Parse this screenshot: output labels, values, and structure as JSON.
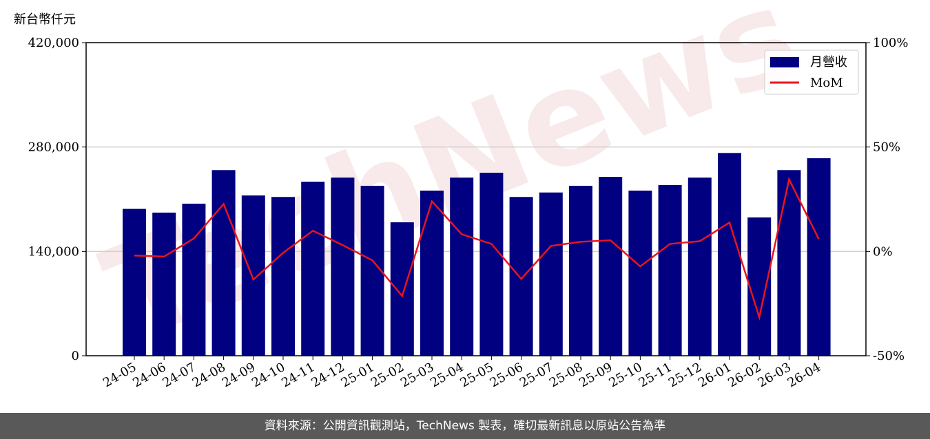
{
  "chart_data": {
    "type": "bar_line",
    "y_label": "新台幣仟元",
    "watermark": "TechNews",
    "categories": [
      "24-05",
      "24-06",
      "24-07",
      "24-08",
      "24-09",
      "24-10",
      "24-11",
      "24-12",
      "25-01",
      "25-02",
      "25-03",
      "25-04",
      "25-05",
      "25-06",
      "25-07",
      "25-08",
      "25-09",
      "25-10",
      "25-11",
      "25-12",
      "26-01",
      "26-02",
      "26-03",
      "26-04"
    ],
    "series": [
      {
        "name": "月營收",
        "type": "bar",
        "color": "#000080",
        "values": [
          197000,
          192000,
          204000,
          249000,
          215000,
          213000,
          233500,
          239000,
          228000,
          179000,
          221500,
          239000,
          245500,
          213000,
          219000,
          228000,
          240000,
          221500,
          229000,
          239000,
          272000,
          185500,
          249000,
          265000
        ]
      },
      {
        "name": "MoM",
        "type": "line",
        "axis": "y2",
        "color": "#e8141e",
        "values": [
          -2,
          -2.5,
          6.2,
          22.7,
          -13.5,
          -0.7,
          9.9,
          3,
          -4.3,
          -21.4,
          24,
          8.2,
          3.6,
          -13.2,
          2.6,
          4.6,
          5.3,
          -7.2,
          3.6,
          4.9,
          13.8,
          -31.6,
          34.5,
          5.9
        ]
      }
    ],
    "ylim": [
      0,
      420000
    ],
    "yticks": [
      0,
      {
        "value": 140000,
        "label": "140,000"
      },
      {
        "value": 280000,
        "label": "280,000"
      },
      {
        "value": 420000,
        "label": "420,000"
      }
    ],
    "y2lim": [
      -50,
      100
    ],
    "y2ticks": [
      {
        "value": -50,
        "label": "-50%"
      },
      {
        "value": 0,
        "label": "0%"
      },
      {
        "value": 50,
        "label": "50%"
      },
      {
        "value": 100,
        "label": "100%"
      }
    ],
    "grid": true,
    "legend": "upper right"
  },
  "footer": "資料來源：公開資訊觀測站，TechNews 製表，確切最新訊息以原站公告為準"
}
